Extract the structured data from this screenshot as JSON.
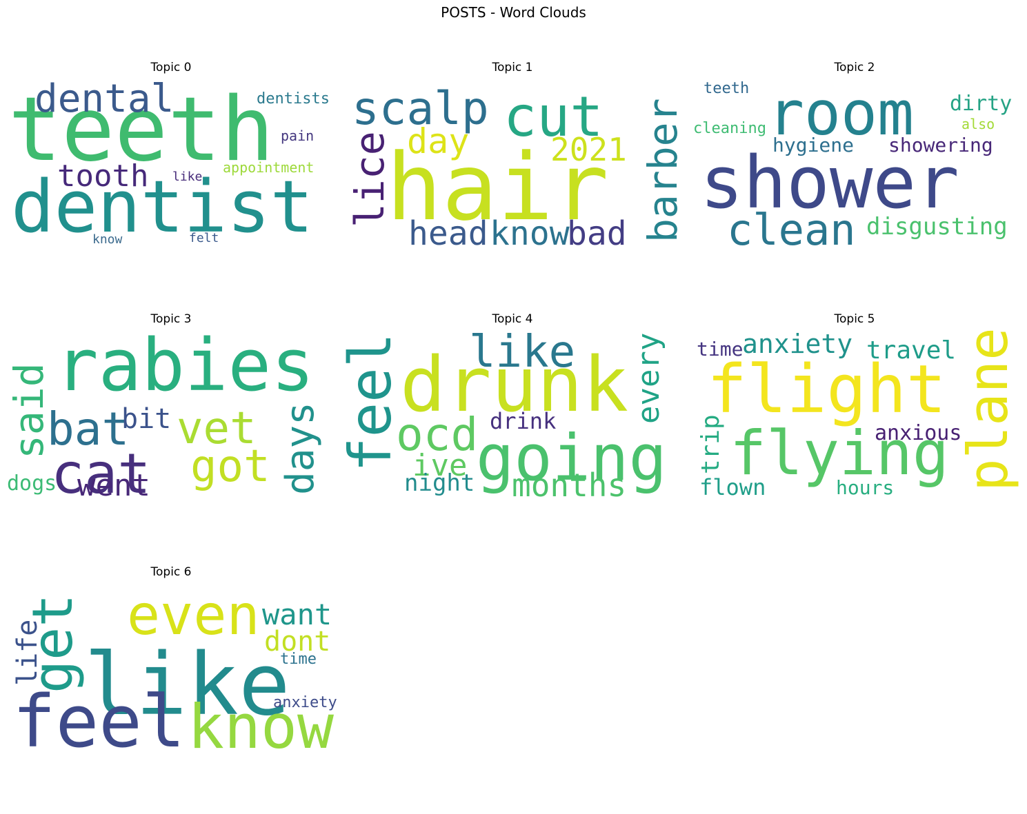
{
  "title": "POSTS - Word Clouds",
  "chart_data": {
    "type": "wordcloud",
    "title": "POSTS - Word Clouds",
    "panels": [
      {
        "title": "Topic 0",
        "words": [
          {
            "text": "teeth",
            "color": "#3fbb6f"
          },
          {
            "text": "dentist",
            "color": "#21908d"
          },
          {
            "text": "dental",
            "color": "#3b5a8c"
          },
          {
            "text": "tooth",
            "color": "#46297a"
          },
          {
            "text": "dentists",
            "color": "#2b7a8e"
          },
          {
            "text": "pain",
            "color": "#44377f"
          },
          {
            "text": "appointment",
            "color": "#9dd93a"
          },
          {
            "text": "like",
            "color": "#472c7a"
          },
          {
            "text": "know",
            "color": "#3b6a8d"
          },
          {
            "text": "felt",
            "color": "#3b5a8c"
          }
        ]
      },
      {
        "title": "Topic 1",
        "words": [
          {
            "text": "hair",
            "color": "#c7e020"
          },
          {
            "text": "scalp",
            "color": "#2d6f8e"
          },
          {
            "text": "cut",
            "color": "#26a784"
          },
          {
            "text": "lice",
            "color": "#482173"
          },
          {
            "text": "day",
            "color": "#dde318"
          },
          {
            "text": "2021",
            "color": "#cde11d"
          },
          {
            "text": "barber",
            "color": "#26838e"
          },
          {
            "text": "head",
            "color": "#3b5a8c"
          },
          {
            "text": "know",
            "color": "#2c728e"
          },
          {
            "text": "bad",
            "color": "#433d84"
          }
        ]
      },
      {
        "title": "Topic 2",
        "words": [
          {
            "text": "shower",
            "color": "#3e4989"
          },
          {
            "text": "room",
            "color": "#24818e"
          },
          {
            "text": "teeth",
            "color": "#31688e"
          },
          {
            "text": "dirty",
            "color": "#25a385"
          },
          {
            "text": "cleaning",
            "color": "#3fbc73"
          },
          {
            "text": "also",
            "color": "#a3da37"
          },
          {
            "text": "hygiene",
            "color": "#2d6f8e"
          },
          {
            "text": "showering",
            "color": "#482878"
          },
          {
            "text": "clean",
            "color": "#2a768e"
          },
          {
            "text": "disgusting",
            "color": "#4ac16d"
          }
        ]
      },
      {
        "title": "Topic 3",
        "words": [
          {
            "text": "rabies",
            "color": "#29af7f"
          },
          {
            "text": "said",
            "color": "#35b779"
          },
          {
            "text": "bat",
            "color": "#2d708e"
          },
          {
            "text": "bit",
            "color": "#3b528b"
          },
          {
            "text": "vet",
            "color": "#aadc32"
          },
          {
            "text": "cat",
            "color": "#472f7d"
          },
          {
            "text": "got",
            "color": "#c2df23"
          },
          {
            "text": "days",
            "color": "#21918c"
          },
          {
            "text": "dogs",
            "color": "#3cbb75"
          },
          {
            "text": "went",
            "color": "#482878"
          }
        ]
      },
      {
        "title": "Topic 4",
        "words": [
          {
            "text": "drunk",
            "color": "#c8e020"
          },
          {
            "text": "feel",
            "color": "#1f948c"
          },
          {
            "text": "like",
            "color": "#2a788e"
          },
          {
            "text": "every",
            "color": "#20a386"
          },
          {
            "text": "ocd",
            "color": "#5ec962"
          },
          {
            "text": "drink",
            "color": "#46307e"
          },
          {
            "text": "going",
            "color": "#4ac16d"
          },
          {
            "text": "ive",
            "color": "#5ec962"
          },
          {
            "text": "night",
            "color": "#228c8d"
          },
          {
            "text": "months",
            "color": "#4cc26c"
          }
        ]
      },
      {
        "title": "Topic 5",
        "words": [
          {
            "text": "flight",
            "color": "#f3e51e"
          },
          {
            "text": "time",
            "color": "#453581"
          },
          {
            "text": "anxiety",
            "color": "#20928c"
          },
          {
            "text": "travel",
            "color": "#1e9c89"
          },
          {
            "text": "plane",
            "color": "#e7e419"
          },
          {
            "text": "trip",
            "color": "#25ab82"
          },
          {
            "text": "flying",
            "color": "#56c667"
          },
          {
            "text": "anxious",
            "color": "#482173"
          },
          {
            "text": "flown",
            "color": "#1f9e89"
          },
          {
            "text": "hours",
            "color": "#28ae80"
          }
        ]
      },
      {
        "title": "Topic 6",
        "words": [
          {
            "text": "like",
            "color": "#228b8d"
          },
          {
            "text": "even",
            "color": "#d8e219"
          },
          {
            "text": "want",
            "color": "#1f968b"
          },
          {
            "text": "dont",
            "color": "#c2df23"
          },
          {
            "text": "life",
            "color": "#3b528b"
          },
          {
            "text": "get",
            "color": "#1e9b8a"
          },
          {
            "text": "time",
            "color": "#2c728e"
          },
          {
            "text": "feel",
            "color": "#3e4a89"
          },
          {
            "text": "know",
            "color": "#95d840"
          },
          {
            "text": "anxiety",
            "color": "#3e4c8a"
          }
        ]
      }
    ]
  }
}
